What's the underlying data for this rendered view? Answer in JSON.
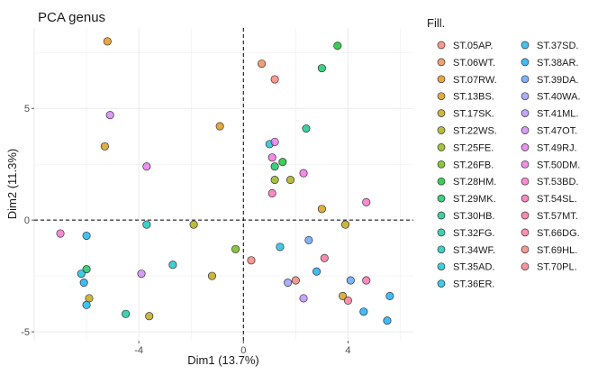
{
  "chart_data": {
    "type": "scatter",
    "title": "PCA genus",
    "xlabel": "Dim1 (13.7%)",
    "ylabel": "Dim2 (11.3%)",
    "xlim": [
      -8.0,
      6.5
    ],
    "ylim": [
      -5.4,
      8.6
    ],
    "xticks": [
      -4,
      0,
      4
    ],
    "yticks": [
      -5,
      0,
      5
    ],
    "grid": true,
    "reference_lines": {
      "x": 0,
      "y": 0,
      "style": "dashed"
    },
    "legend": {
      "title": "Fill.",
      "placement": "right",
      "columns": 2,
      "entries": [
        {
          "label": "ST.05AP.",
          "color": "#F8766D"
        },
        {
          "label": "ST.06WT.",
          "color": "#EE8044"
        },
        {
          "label": "ST.07RW.",
          "color": "#E08B00"
        },
        {
          "label": "ST.13BS.",
          "color": "#D09400"
        },
        {
          "label": "ST.17SK.",
          "color": "#BB9D00"
        },
        {
          "label": "ST.22WS.",
          "color": "#A3A500"
        },
        {
          "label": "ST.25FE.",
          "color": "#87AC00"
        },
        {
          "label": "ST.26FB.",
          "color": "#61B200"
        },
        {
          "label": "ST.28HM.",
          "color": "#00B81F"
        },
        {
          "label": "ST.29MK.",
          "color": "#00BC56"
        },
        {
          "label": "ST.30HB.",
          "color": "#00BF7D"
        },
        {
          "label": "ST.32FG.",
          "color": "#00C19A"
        },
        {
          "label": "ST.34WF.",
          "color": "#00C0B4"
        },
        {
          "label": "ST.35AD.",
          "color": "#00BDCB"
        },
        {
          "label": "ST.36ER.",
          "color": "#00B8DE"
        },
        {
          "label": "ST.37SD.",
          "color": "#00B0ED"
        },
        {
          "label": "ST.38AR.",
          "color": "#00A6F9"
        },
        {
          "label": "ST.39DA.",
          "color": "#529BFF"
        },
        {
          "label": "ST.40WA.",
          "color": "#8F91FF"
        },
        {
          "label": "ST.41ML.",
          "color": "#B584FF"
        },
        {
          "label": "ST.47OT.",
          "color": "#D078F9"
        },
        {
          "label": "ST.49RJ.",
          "color": "#E36EEF"
        },
        {
          "label": "ST.50DM.",
          "color": "#F166DE"
        },
        {
          "label": "ST.53BD.",
          "color": "#FA62C7"
        },
        {
          "label": "ST.54SL.",
          "color": "#FE62AD"
        },
        {
          "label": "ST.57MT.",
          "color": "#FF6691"
        },
        {
          "label": "ST.66DG.",
          "color": "#FF6C91"
        },
        {
          "label": "ST.69HL.",
          "color": "#F8766D"
        },
        {
          "label": "ST.70PL.",
          "color": "#FF7080"
        }
      ]
    },
    "points": [
      {
        "x": -5.2,
        "y": 8.0,
        "color": "#E08B00"
      },
      {
        "x": 0.7,
        "y": 7.0,
        "color": "#EE8044"
      },
      {
        "x": 1.2,
        "y": 6.3,
        "color": "#F8766D"
      },
      {
        "x": 3.6,
        "y": 7.8,
        "color": "#00B81F"
      },
      {
        "x": 3.0,
        "y": 6.8,
        "color": "#00BC56"
      },
      {
        "x": -5.1,
        "y": 4.7,
        "color": "#D078F9"
      },
      {
        "x": -0.9,
        "y": 4.2,
        "color": "#E08B00"
      },
      {
        "x": -5.3,
        "y": 3.3,
        "color": "#D09400"
      },
      {
        "x": 2.4,
        "y": 4.1,
        "color": "#00BF7D"
      },
      {
        "x": 1.0,
        "y": 3.4,
        "color": "#00BDCB"
      },
      {
        "x": 1.2,
        "y": 3.5,
        "color": "#E36EEF"
      },
      {
        "x": 1.1,
        "y": 2.8,
        "color": "#F166DE"
      },
      {
        "x": 1.5,
        "y": 2.6,
        "color": "#00B81F"
      },
      {
        "x": 1.2,
        "y": 2.4,
        "color": "#00BC56"
      },
      {
        "x": -3.7,
        "y": 2.4,
        "color": "#E36EEF"
      },
      {
        "x": 2.3,
        "y": 2.1,
        "color": "#F166DE"
      },
      {
        "x": 1.2,
        "y": 1.8,
        "color": "#87AC00"
      },
      {
        "x": 1.8,
        "y": 1.8,
        "color": "#A3A500"
      },
      {
        "x": 1.1,
        "y": 1.2,
        "color": "#FE62AD"
      },
      {
        "x": 4.7,
        "y": 0.8,
        "color": "#FA62C7"
      },
      {
        "x": 3.0,
        "y": 0.5,
        "color": "#D09400"
      },
      {
        "x": 3.9,
        "y": -0.2,
        "color": "#BB9D00"
      },
      {
        "x": -3.7,
        "y": -0.2,
        "color": "#00C0B4"
      },
      {
        "x": -1.9,
        "y": -0.2,
        "color": "#A3A500"
      },
      {
        "x": -7.0,
        "y": -0.6,
        "color": "#FA62C7"
      },
      {
        "x": -6.0,
        "y": -0.7,
        "color": "#00B0ED"
      },
      {
        "x": 2.5,
        "y": -0.9,
        "color": "#529BFF"
      },
      {
        "x": 1.4,
        "y": -1.2,
        "color": "#00B8DE"
      },
      {
        "x": -0.3,
        "y": -1.3,
        "color": "#61B200"
      },
      {
        "x": 0.3,
        "y": -1.8,
        "color": "#F8766D"
      },
      {
        "x": 3.1,
        "y": -1.7,
        "color": "#FF6691"
      },
      {
        "x": -2.7,
        "y": -2.0,
        "color": "#00BDCB"
      },
      {
        "x": -6.0,
        "y": -2.2,
        "color": "#00BC56"
      },
      {
        "x": -6.2,
        "y": -2.4,
        "color": "#00B8DE"
      },
      {
        "x": -3.9,
        "y": -2.4,
        "color": "#D078F9"
      },
      {
        "x": -1.2,
        "y": -2.5,
        "color": "#BB9D00"
      },
      {
        "x": 2.8,
        "y": -2.3,
        "color": "#00A6F9"
      },
      {
        "x": -6.1,
        "y": -2.8,
        "color": "#00A6F9"
      },
      {
        "x": 2.0,
        "y": -2.7,
        "color": "#F8766D"
      },
      {
        "x": 1.7,
        "y": -2.8,
        "color": "#8F91FF"
      },
      {
        "x": 4.1,
        "y": -2.7,
        "color": "#529BFF"
      },
      {
        "x": 4.7,
        "y": -2.7,
        "color": "#FE62AD"
      },
      {
        "x": -5.9,
        "y": -3.5,
        "color": "#BB9D00"
      },
      {
        "x": 3.8,
        "y": -3.4,
        "color": "#D09400"
      },
      {
        "x": 4.0,
        "y": -3.6,
        "color": "#FF6C91"
      },
      {
        "x": 5.6,
        "y": -3.4,
        "color": "#00A6F9"
      },
      {
        "x": 2.3,
        "y": -3.5,
        "color": "#B584FF"
      },
      {
        "x": -6.0,
        "y": -3.8,
        "color": "#00B0ED"
      },
      {
        "x": -4.5,
        "y": -4.2,
        "color": "#00C19A"
      },
      {
        "x": -3.6,
        "y": -4.3,
        "color": "#BB9D00"
      },
      {
        "x": 4.6,
        "y": -4.1,
        "color": "#00A6F9"
      },
      {
        "x": 5.5,
        "y": -4.5,
        "color": "#00A6F9"
      }
    ]
  }
}
